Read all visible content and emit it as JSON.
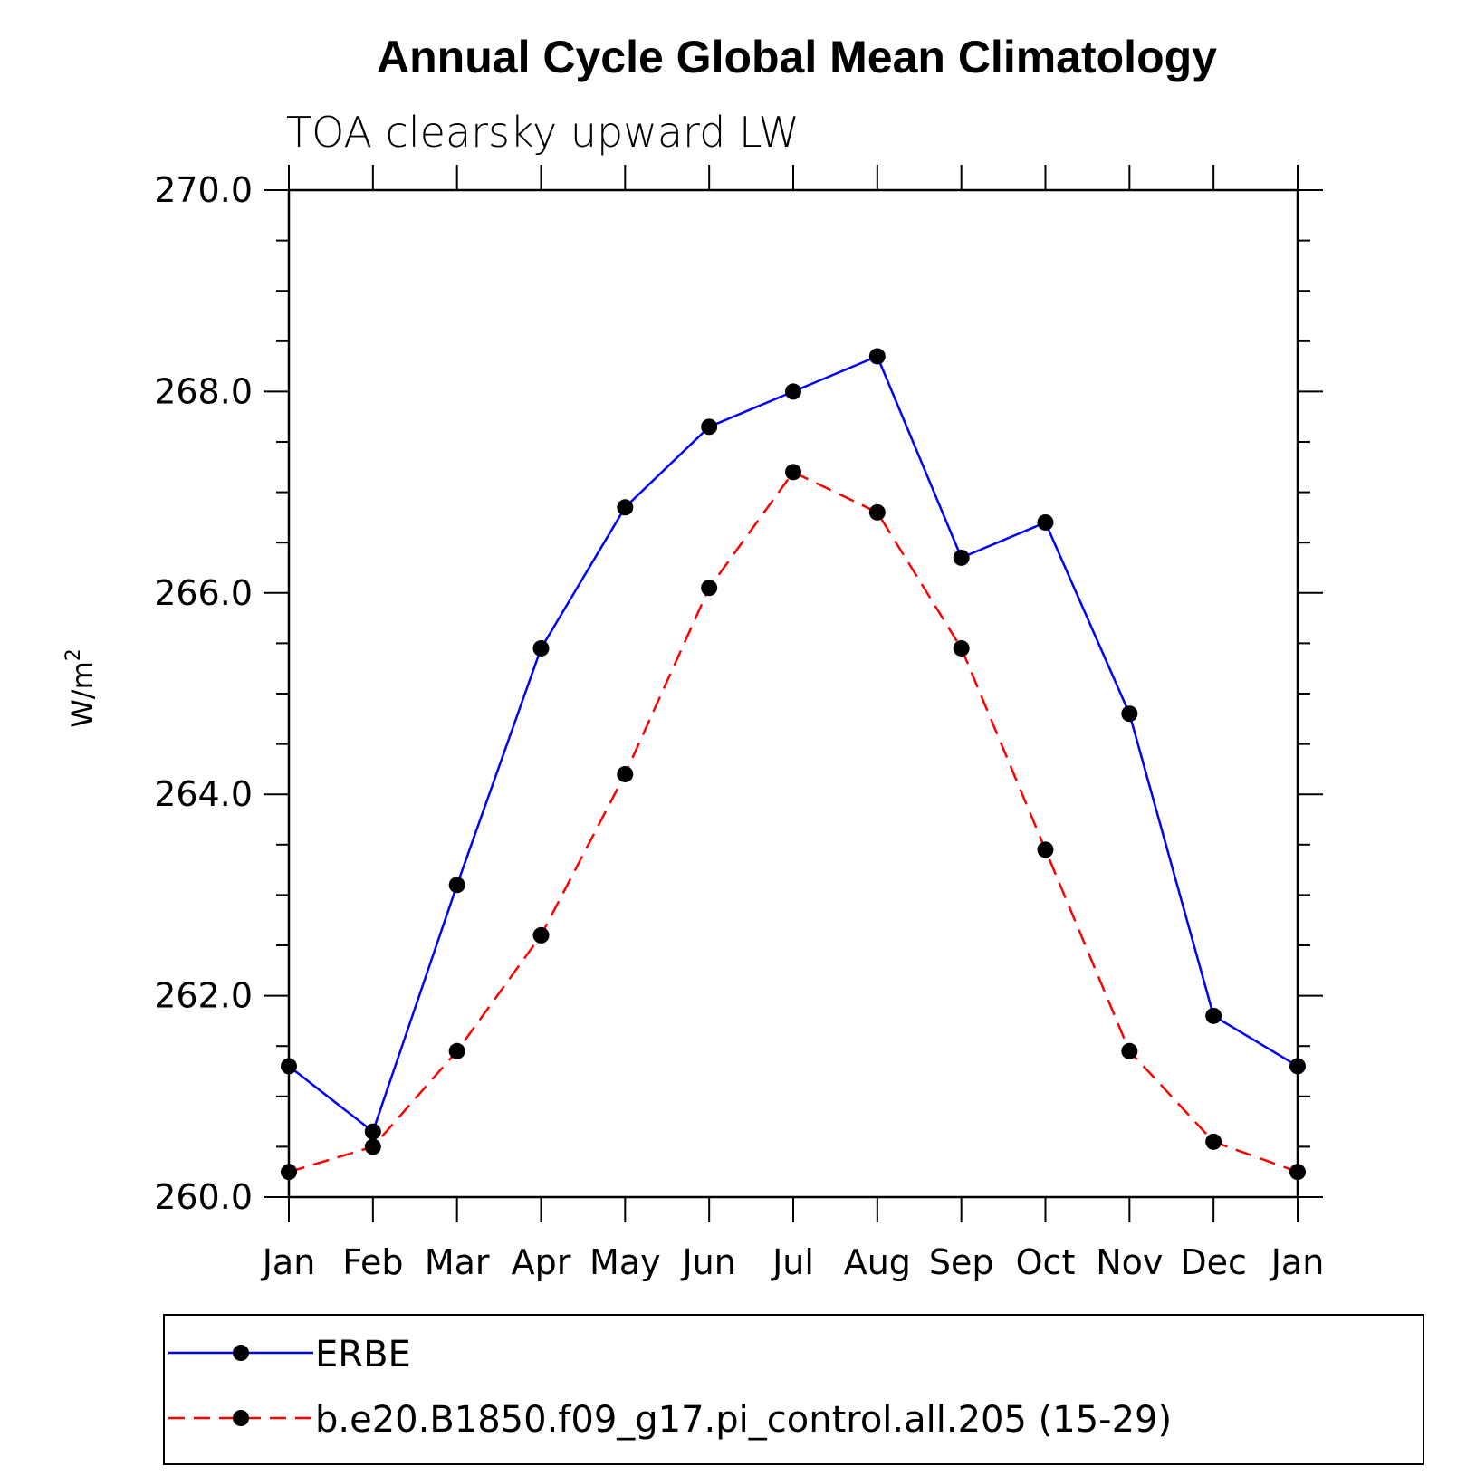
{
  "chart_data": {
    "type": "line",
    "title": "Annual Cycle Global Mean Climatology",
    "subtitle": "TOA clearsky upward LW",
    "xlabel": "",
    "ylabel": "W/m",
    "ylabel_superscript": "2",
    "categories": [
      "Jan",
      "Feb",
      "Mar",
      "Apr",
      "May",
      "Jun",
      "Jul",
      "Aug",
      "Sep",
      "Oct",
      "Nov",
      "Dec",
      "Jan"
    ],
    "ylim": [
      260,
      270
    ],
    "yticks": [
      "260.0",
      "262.0",
      "264.0",
      "266.0",
      "268.0",
      "270.0"
    ],
    "y_minor_step": 0.5,
    "grid": false,
    "legend_position": "bottom",
    "series": [
      {
        "name": "ERBE",
        "color": "#0000ff",
        "line_style": "solid",
        "marker": "filled-circle",
        "values": [
          261.3,
          260.65,
          263.1,
          265.45,
          266.85,
          267.65,
          268.0,
          268.35,
          266.35,
          266.7,
          264.8,
          261.8,
          261.3
        ]
      },
      {
        "name": "b.e20.B1850.f09_g17.pi_control.all.205 (15-29)",
        "color": "#ff0000",
        "line_style": "dashed",
        "marker": "filled-circle",
        "values": [
          260.25,
          260.5,
          261.45,
          262.6,
          264.2,
          266.05,
          267.2,
          266.8,
          265.45,
          263.45,
          261.45,
          260.55,
          260.25
        ]
      }
    ]
  }
}
